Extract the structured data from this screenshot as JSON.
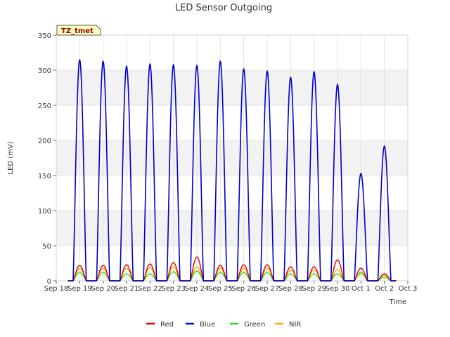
{
  "chart_data": {
    "type": "line",
    "title": "LED Sensor Outgoing",
    "xlabel": "Time",
    "ylabel": "LED (mV)",
    "badge": "TZ_tmet",
    "ylim": [
      0,
      350
    ],
    "yticks": [
      0,
      50,
      100,
      150,
      200,
      250,
      300,
      350
    ],
    "xlim": [
      0,
      15
    ],
    "xtick_labels": [
      "Sep 18",
      "Sep 19",
      "Sep 20",
      "Sep 21",
      "Sep 22",
      "Sep 23",
      "Sep 24",
      "Sep 25",
      "Sep 26",
      "Sep 27",
      "Sep 28",
      "Sep 29",
      "Sep 30",
      "Oct 1",
      "Oct 2",
      "Oct 3"
    ],
    "grid": true,
    "legend_position": "bottom",
    "day_peaks": [
      {
        "day": "Sep 19",
        "Red": 22,
        "Blue": 315,
        "Green": 12,
        "NIR": 18
      },
      {
        "day": "Sep 20",
        "Red": 22,
        "Blue": 313,
        "Green": 12,
        "NIR": 18
      },
      {
        "day": "Sep 21",
        "Red": 23,
        "Blue": 306,
        "Green": 10,
        "NIR": 18
      },
      {
        "day": "Sep 22",
        "Red": 24,
        "Blue": 309,
        "Green": 10,
        "NIR": 19
      },
      {
        "day": "Sep 23",
        "Red": 26,
        "Blue": 308,
        "Green": 13,
        "NIR": 20
      },
      {
        "day": "Sep 24",
        "Red": 34,
        "Blue": 307,
        "Green": 14,
        "NIR": 20
      },
      {
        "day": "Sep 25",
        "Red": 22,
        "Blue": 313,
        "Green": 12,
        "NIR": 18
      },
      {
        "day": "Sep 26",
        "Red": 23,
        "Blue": 302,
        "Green": 12,
        "NIR": 18
      },
      {
        "day": "Sep 27",
        "Red": 23,
        "Blue": 299,
        "Green": 12,
        "NIR": 18
      },
      {
        "day": "Sep 28",
        "Red": 20,
        "Blue": 290,
        "Green": 10,
        "NIR": 15
      },
      {
        "day": "Sep 29",
        "Red": 20,
        "Blue": 298,
        "Green": 10,
        "NIR": 16
      },
      {
        "day": "Sep 30",
        "Red": 30,
        "Blue": 280,
        "Green": 10,
        "NIR": 16
      },
      {
        "day": "Oct 1",
        "Red": 18,
        "Blue": 153,
        "Green": 12,
        "NIR": 10
      },
      {
        "day": "Oct 2",
        "Red": 10,
        "Blue": 192,
        "Green": 5,
        "NIR": 8
      }
    ],
    "series": [
      {
        "name": "Red",
        "color": "#dd0000"
      },
      {
        "name": "Blue",
        "color": "#0000cc"
      },
      {
        "name": "Green",
        "color": "#22dd22"
      },
      {
        "name": "NIR",
        "color": "#ffaa00"
      }
    ]
  }
}
